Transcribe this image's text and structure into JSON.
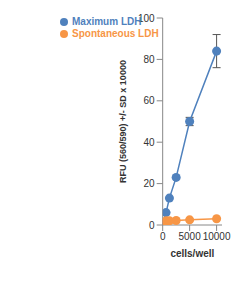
{
  "chart_data": {
    "type": "scatter",
    "x_label": "cells/well",
    "y_label": "RFU (560/590) +/- SD  x 10000",
    "xlim": [
      0,
      11000
    ],
    "xticks": [
      0,
      5000,
      10000
    ],
    "ylim": [
      0,
      100
    ],
    "yticks": [
      0,
      20,
      40,
      60,
      80,
      100
    ],
    "grid": false,
    "legend": "top-left",
    "series": [
      {
        "name": "Maximum LDH",
        "color": "#4f81bd",
        "marker": "circle",
        "line_style": "solid",
        "x": [
          0,
          625,
          1250,
          2500,
          5000,
          10000
        ],
        "values": [
          0.5,
          6,
          13,
          23,
          50,
          84
        ],
        "errors": [
          null,
          null,
          null,
          null,
          2,
          8
        ]
      },
      {
        "name": "Spontaneous LDH",
        "color": "#f79646",
        "marker": "circle",
        "line_style": "solid",
        "x": [
          0,
          625,
          1250,
          2500,
          5000,
          10000
        ],
        "values": [
          1,
          2,
          2,
          2.2,
          2.5,
          3
        ],
        "errors": [
          null,
          null,
          null,
          null,
          null,
          null
        ]
      }
    ]
  }
}
